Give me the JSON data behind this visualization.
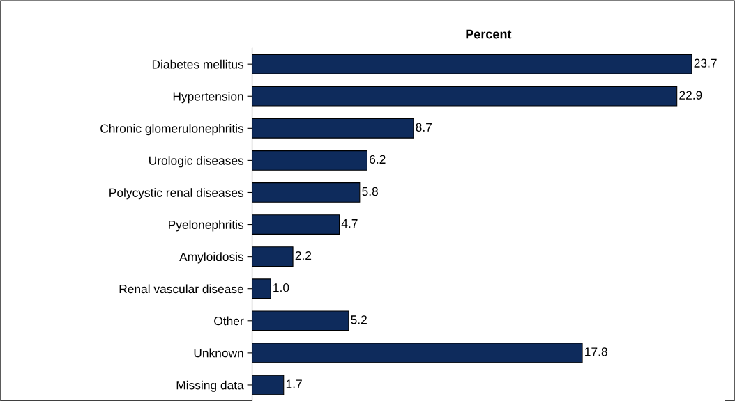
{
  "chart_data": {
    "type": "bar",
    "orientation": "horizontal",
    "title": "Percent",
    "categories": [
      "Diabetes mellitus",
      "Hypertension",
      "Chronic glomerulonephritis",
      "Urologic diseases",
      "Polycystic renal diseases",
      "Pyelonephritis",
      "Amyloidosis",
      "Renal vascular disease",
      "Other",
      "Unknown",
      "Missing data"
    ],
    "values": [
      23.7,
      22.9,
      8.7,
      6.2,
      5.8,
      4.7,
      2.2,
      1.0,
      5.2,
      17.8,
      1.7
    ],
    "value_labels": [
      "23.7",
      "22.9",
      "8.7",
      "6.2",
      "5.8",
      "4.7",
      "2.2",
      "1.0",
      "5.2",
      "17.8",
      "1.7"
    ],
    "color": "#0e2b5c",
    "tick_labels": "y",
    "grid": false,
    "legend": false
  }
}
